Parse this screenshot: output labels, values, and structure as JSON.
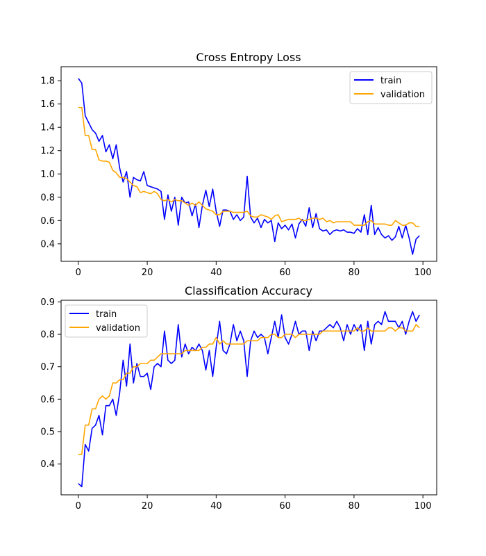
{
  "chart_data": [
    {
      "type": "line",
      "title": "Cross Entropy Loss",
      "xlabel": "",
      "ylabel": "",
      "xlim": [
        -5,
        104
      ],
      "ylim": [
        0.25,
        1.92
      ],
      "xticks": [
        0,
        20,
        40,
        60,
        80,
        100
      ],
      "yticks": [
        0.4,
        0.6,
        0.8,
        1.0,
        1.2,
        1.4,
        1.6,
        1.8
      ],
      "ytick_labels": [
        "0.4",
        "0.6",
        "0.8",
        "1.0",
        "1.2",
        "1.4",
        "1.6",
        "1.8"
      ],
      "legend_position": "top-right",
      "series": [
        {
          "name": "train",
          "color": "#0000ff",
          "values": [
            1.82,
            1.78,
            1.5,
            1.44,
            1.38,
            1.35,
            1.28,
            1.33,
            1.19,
            1.25,
            1.13,
            1.25,
            1.05,
            0.93,
            1.02,
            0.8,
            0.97,
            0.95,
            0.94,
            1.02,
            0.9,
            0.89,
            0.88,
            0.87,
            0.85,
            0.61,
            0.82,
            0.68,
            0.8,
            0.56,
            0.8,
            0.75,
            0.76,
            0.64,
            0.74,
            0.54,
            0.73,
            0.86,
            0.72,
            0.87,
            0.68,
            0.55,
            0.69,
            0.69,
            0.68,
            0.61,
            0.65,
            0.6,
            0.63,
            0.98,
            0.63,
            0.58,
            0.62,
            0.54,
            0.61,
            0.58,
            0.6,
            0.42,
            0.58,
            0.53,
            0.56,
            0.52,
            0.57,
            0.45,
            0.57,
            0.61,
            0.55,
            0.71,
            0.54,
            0.66,
            0.53,
            0.51,
            0.52,
            0.48,
            0.51,
            0.52,
            0.51,
            0.52,
            0.5,
            0.5,
            0.49,
            0.53,
            0.5,
            0.65,
            0.48,
            0.73,
            0.48,
            0.54,
            0.48,
            0.45,
            0.47,
            0.43,
            0.46,
            0.55,
            0.45,
            0.56,
            0.45,
            0.31,
            0.44,
            0.47
          ]
        },
        {
          "name": "validation",
          "color": "#ffa500",
          "values": [
            1.57,
            1.57,
            1.33,
            1.33,
            1.21,
            1.21,
            1.12,
            1.11,
            1.11,
            1.1,
            1.03,
            1.01,
            0.97,
            0.97,
            0.96,
            0.93,
            0.9,
            0.89,
            0.84,
            0.85,
            0.84,
            0.83,
            0.85,
            0.83,
            0.78,
            0.77,
            0.78,
            0.76,
            0.78,
            0.77,
            0.77,
            0.75,
            0.73,
            0.75,
            0.73,
            0.76,
            0.73,
            0.7,
            0.69,
            0.68,
            0.65,
            0.65,
            0.68,
            0.68,
            0.68,
            0.67,
            0.67,
            0.67,
            0.67,
            0.68,
            0.64,
            0.63,
            0.63,
            0.65,
            0.64,
            0.63,
            0.61,
            0.64,
            0.65,
            0.59,
            0.6,
            0.61,
            0.61,
            0.61,
            0.62,
            0.6,
            0.6,
            0.61,
            0.62,
            0.62,
            0.61,
            0.62,
            0.59,
            0.6,
            0.58,
            0.59,
            0.59,
            0.59,
            0.59,
            0.59,
            0.56,
            0.56,
            0.56,
            0.56,
            0.59,
            0.6,
            0.57,
            0.57,
            0.57,
            0.57,
            0.56,
            0.56,
            0.6,
            0.58,
            0.56,
            0.56,
            0.58,
            0.58,
            0.55,
            0.55
          ]
        }
      ]
    },
    {
      "type": "line",
      "title": "Classification Accuracy",
      "xlabel": "",
      "ylabel": "",
      "xlim": [
        -5,
        104
      ],
      "ylim": [
        0.305,
        0.905
      ],
      "xticks": [
        0,
        20,
        40,
        60,
        80,
        100
      ],
      "yticks": [
        0.4,
        0.5,
        0.6,
        0.7,
        0.8,
        0.9
      ],
      "ytick_labels": [
        "0.4",
        "0.5",
        "0.6",
        "0.7",
        "0.8",
        "0.9"
      ],
      "legend_position": "top-left",
      "series": [
        {
          "name": "train",
          "color": "#0000ff",
          "values": [
            0.34,
            0.33,
            0.46,
            0.44,
            0.51,
            0.52,
            0.55,
            0.49,
            0.58,
            0.58,
            0.6,
            0.55,
            0.62,
            0.72,
            0.64,
            0.77,
            0.65,
            0.71,
            0.67,
            0.67,
            0.68,
            0.63,
            0.7,
            0.71,
            0.7,
            0.81,
            0.72,
            0.71,
            0.72,
            0.83,
            0.73,
            0.77,
            0.74,
            0.76,
            0.75,
            0.77,
            0.75,
            0.69,
            0.75,
            0.67,
            0.76,
            0.84,
            0.75,
            0.74,
            0.77,
            0.83,
            0.78,
            0.81,
            0.78,
            0.67,
            0.78,
            0.81,
            0.79,
            0.8,
            0.79,
            0.74,
            0.79,
            0.84,
            0.79,
            0.86,
            0.79,
            0.77,
            0.8,
            0.84,
            0.8,
            0.81,
            0.81,
            0.75,
            0.81,
            0.78,
            0.81,
            0.81,
            0.82,
            0.83,
            0.82,
            0.84,
            0.82,
            0.78,
            0.83,
            0.8,
            0.83,
            0.81,
            0.83,
            0.75,
            0.84,
            0.77,
            0.83,
            0.84,
            0.83,
            0.87,
            0.84,
            0.84,
            0.84,
            0.82,
            0.84,
            0.8,
            0.84,
            0.87,
            0.84,
            0.86
          ]
        },
        {
          "name": "validation",
          "color": "#ffa500",
          "values": [
            0.43,
            0.43,
            0.52,
            0.52,
            0.57,
            0.57,
            0.6,
            0.61,
            0.6,
            0.61,
            0.65,
            0.65,
            0.66,
            0.66,
            0.68,
            0.68,
            0.7,
            0.7,
            0.71,
            0.71,
            0.71,
            0.72,
            0.72,
            0.73,
            0.74,
            0.74,
            0.74,
            0.74,
            0.74,
            0.74,
            0.74,
            0.75,
            0.75,
            0.75,
            0.75,
            0.75,
            0.76,
            0.76,
            0.77,
            0.77,
            0.79,
            0.77,
            0.78,
            0.77,
            0.77,
            0.77,
            0.77,
            0.77,
            0.77,
            0.78,
            0.78,
            0.78,
            0.78,
            0.79,
            0.79,
            0.79,
            0.8,
            0.8,
            0.79,
            0.79,
            0.8,
            0.8,
            0.8,
            0.79,
            0.8,
            0.8,
            0.8,
            0.8,
            0.8,
            0.8,
            0.8,
            0.81,
            0.81,
            0.81,
            0.81,
            0.81,
            0.81,
            0.81,
            0.81,
            0.81,
            0.81,
            0.82,
            0.81,
            0.81,
            0.82,
            0.81,
            0.81,
            0.81,
            0.81,
            0.81,
            0.82,
            0.82,
            0.81,
            0.82,
            0.82,
            0.81,
            0.81,
            0.81,
            0.83,
            0.82
          ]
        }
      ]
    }
  ]
}
